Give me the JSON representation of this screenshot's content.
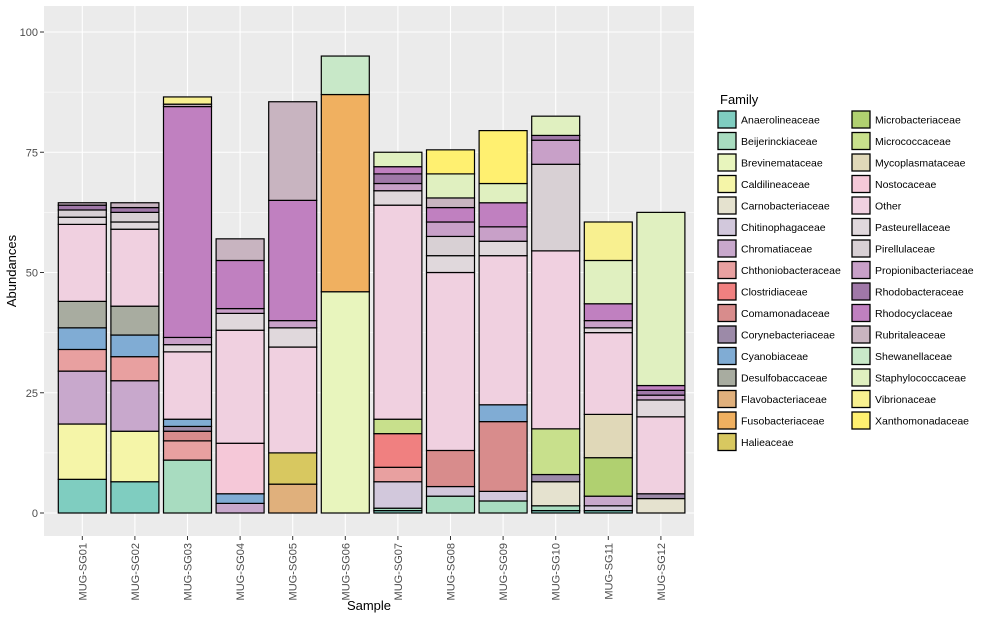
{
  "chart_data": {
    "type": "bar",
    "stacked": true,
    "xlabel": "Sample",
    "ylabel": "Abundances",
    "ylim": [
      0,
      100
    ],
    "yticks": [
      0,
      25,
      50,
      75,
      100
    ],
    "grid": true,
    "legend_position": "right",
    "legend_title": "Family",
    "categories": [
      "MUG-SG01",
      "MUG-SG02",
      "MUG-SG03",
      "MUG-SG04",
      "MUG-SG05",
      "MUG-SG06",
      "MUG-SG07",
      "MUG-SG08",
      "MUG-SG09",
      "MUG-SG10",
      "MUG-SG11",
      "MUG-SG12"
    ],
    "families": [
      {
        "name": "Anaerolineaceae",
        "color": "#7fcdc0"
      },
      {
        "name": "Beijerinckiaceae",
        "color": "#a8dcc0"
      },
      {
        "name": "Brevinemataceae",
        "color": "#e8f5bd"
      },
      {
        "name": "Caldilineaceae",
        "color": "#f5f5a8"
      },
      {
        "name": "Carnobacteriaceae",
        "color": "#e5e2cf"
      },
      {
        "name": "Chitinophagaceae",
        "color": "#d2c8dc"
      },
      {
        "name": "Chromatiaceae",
        "color": "#c8a8cc"
      },
      {
        "name": "Chthoniobacteraceae",
        "color": "#e8a0a0"
      },
      {
        "name": "Clostridiaceae",
        "color": "#f08080"
      },
      {
        "name": "Comamonadaceae",
        "color": "#d88c8c"
      },
      {
        "name": "Corynebacteriaceae",
        "color": "#9c8aa8"
      },
      {
        "name": "Cyanobiaceae",
        "color": "#80acd4"
      },
      {
        "name": "Desulfobaccaceae",
        "color": "#a8aca0"
      },
      {
        "name": "Flavobacteriaceae",
        "color": "#e0b07c"
      },
      {
        "name": "Fusobacteriaceae",
        "color": "#f0b060"
      },
      {
        "name": "Halieaceae",
        "color": "#d8c860"
      },
      {
        "name": "Microbacteriaceae",
        "color": "#b0d070"
      },
      {
        "name": "Micrococcaceae",
        "color": "#c8e08c"
      },
      {
        "name": "Mycoplasmataceae",
        "color": "#e0d8b8"
      },
      {
        "name": "Nostocaceae",
        "color": "#f5c8d8"
      },
      {
        "name": "Other",
        "color": "#f0d0e0"
      },
      {
        "name": "Pasteurellaceae",
        "color": "#e0d8dc"
      },
      {
        "name": "Pirellulaceae",
        "color": "#d8d0d4"
      },
      {
        "name": "Propionibacteriaceae",
        "color": "#c8a0c8"
      },
      {
        "name": "Rhodobacteraceae",
        "color": "#a078a8"
      },
      {
        "name": "Rhodocyclaceae",
        "color": "#c080c0"
      },
      {
        "name": "Rubritaleaceae",
        "color": "#c8b4c0"
      },
      {
        "name": "Shewanellaceae",
        "color": "#c8e8c8"
      },
      {
        "name": "Staphylococcaceae",
        "color": "#e0f0c0"
      },
      {
        "name": "Vibrionaceae",
        "color": "#f8f090"
      },
      {
        "name": "Xanthomonadaceae",
        "color": "#fff070"
      }
    ],
    "series": [
      {
        "name": "Anaerolineaceae",
        "values": [
          7,
          6.5,
          0,
          0,
          0,
          0,
          0.5,
          0,
          0,
          0.5,
          0.5,
          0
        ]
      },
      {
        "name": "Beijerinckiaceae",
        "values": [
          0,
          0,
          11,
          0,
          0,
          0,
          0.5,
          3.5,
          2.5,
          1,
          0,
          0
        ]
      },
      {
        "name": "Brevinemataceae",
        "values": [
          0,
          0,
          0,
          0,
          0,
          46,
          0,
          0,
          0,
          0,
          0,
          0
        ]
      },
      {
        "name": "Caldilineaceae",
        "values": [
          11.5,
          10.5,
          0,
          0,
          0,
          0,
          0,
          0,
          0,
          0,
          0,
          0
        ]
      },
      {
        "name": "Carnobacteriaceae",
        "values": [
          0,
          0,
          0,
          0,
          0,
          0,
          0,
          0,
          0,
          5,
          0,
          3
        ]
      },
      {
        "name": "Chitinophagaceae",
        "values": [
          0,
          0,
          0,
          0,
          0,
          0,
          5.5,
          2,
          2,
          0,
          1,
          0
        ]
      },
      {
        "name": "Chromatiaceae",
        "values": [
          11,
          10.5,
          0,
          2,
          0,
          0,
          0,
          0,
          0,
          0,
          2,
          0
        ]
      },
      {
        "name": "Chthoniobacteraceae",
        "values": [
          4.5,
          5,
          4,
          0,
          0,
          0,
          3,
          0,
          0,
          0,
          0,
          0
        ]
      },
      {
        "name": "Clostridiaceae",
        "values": [
          0,
          0,
          0,
          0,
          0,
          0,
          7,
          0,
          0,
          0,
          0,
          0
        ]
      },
      {
        "name": "Comamonadaceae",
        "values": [
          0,
          0,
          2,
          0,
          0,
          0,
          0,
          7.5,
          14.5,
          0,
          0,
          0
        ]
      },
      {
        "name": "Corynebacteriaceae",
        "values": [
          0,
          0,
          1,
          0,
          0,
          0,
          0,
          0,
          0,
          1.5,
          0,
          1
        ]
      },
      {
        "name": "Cyanobiaceae",
        "values": [
          4.5,
          4.5,
          1.5,
          2,
          0,
          0,
          0,
          0,
          3.5,
          0,
          0,
          0
        ]
      },
      {
        "name": "Desulfobaccaceae",
        "values": [
          5.5,
          6,
          0,
          0,
          0,
          0,
          0,
          0,
          0,
          0,
          0,
          0
        ]
      },
      {
        "name": "Flavobacteriaceae",
        "values": [
          0,
          0,
          0,
          0,
          6,
          0,
          0,
          0,
          0,
          0,
          0,
          0
        ]
      },
      {
        "name": "Fusobacteriaceae",
        "values": [
          0,
          0,
          0,
          0,
          0,
          41,
          0,
          0,
          0,
          0,
          0,
          0
        ]
      },
      {
        "name": "Halieaceae",
        "values": [
          0,
          0,
          0,
          0,
          6.5,
          0,
          0,
          0,
          0,
          0,
          0,
          0
        ]
      },
      {
        "name": "Microbacteriaceae",
        "values": [
          0,
          0,
          0,
          0,
          0,
          0,
          0,
          0,
          0,
          0,
          8,
          0
        ]
      },
      {
        "name": "Micrococcaceae",
        "values": [
          0,
          0,
          0,
          0,
          0,
          0,
          3,
          0,
          0,
          9.5,
          0,
          0
        ]
      },
      {
        "name": "Mycoplasmataceae",
        "values": [
          0,
          0,
          0,
          0,
          0,
          0,
          0,
          0,
          0,
          0,
          9,
          0
        ]
      },
      {
        "name": "Nostocaceae",
        "values": [
          0,
          0,
          0,
          10.5,
          0,
          0,
          0,
          0,
          0,
          0,
          0,
          0
        ]
      },
      {
        "name": "Other",
        "values": [
          16,
          16,
          14,
          23.5,
          22,
          0,
          44.5,
          37,
          31,
          37,
          17,
          16
        ]
      },
      {
        "name": "Pasteurellaceae",
        "values": [
          1.5,
          1.5,
          1.5,
          3.5,
          4,
          0,
          3,
          3.5,
          3,
          0,
          1,
          3.5
        ]
      },
      {
        "name": "Pirellulaceae",
        "values": [
          1.5,
          2,
          0,
          0,
          0,
          0,
          0,
          4,
          0,
          18,
          0,
          0
        ]
      },
      {
        "name": "Propionibacteriaceae",
        "values": [
          0,
          0,
          1.5,
          1,
          1.5,
          0,
          1.5,
          3,
          3,
          5,
          1.5,
          1
        ]
      },
      {
        "name": "Rhodobacteraceae",
        "values": [
          1,
          1,
          0,
          0,
          0,
          0,
          2,
          0,
          0,
          1,
          0,
          1
        ]
      },
      {
        "name": "Rhodocyclaceae",
        "values": [
          0,
          0,
          48,
          10,
          25,
          0,
          1.5,
          3,
          5,
          0,
          3.5,
          1
        ]
      },
      {
        "name": "Rubritaleaceae",
        "values": [
          0.5,
          1,
          0.5,
          4.5,
          20.5,
          0,
          0,
          2,
          0,
          0,
          0,
          0
        ]
      },
      {
        "name": "Shewanellaceae",
        "values": [
          0,
          0,
          0,
          0,
          0,
          8,
          0,
          0,
          0,
          0,
          0,
          0
        ]
      },
      {
        "name": "Staphylococcaceae",
        "values": [
          0,
          0,
          0,
          0,
          0,
          0,
          3,
          5,
          4,
          4,
          9,
          36
        ]
      },
      {
        "name": "Vibrionaceae",
        "values": [
          0,
          0,
          1.5,
          0,
          0,
          0,
          0,
          0,
          0,
          0,
          8,
          0
        ]
      },
      {
        "name": "Xanthomonadaceae",
        "values": [
          0,
          0,
          0,
          0,
          0,
          0,
          0,
          5,
          11,
          0,
          0,
          0
        ]
      }
    ]
  }
}
